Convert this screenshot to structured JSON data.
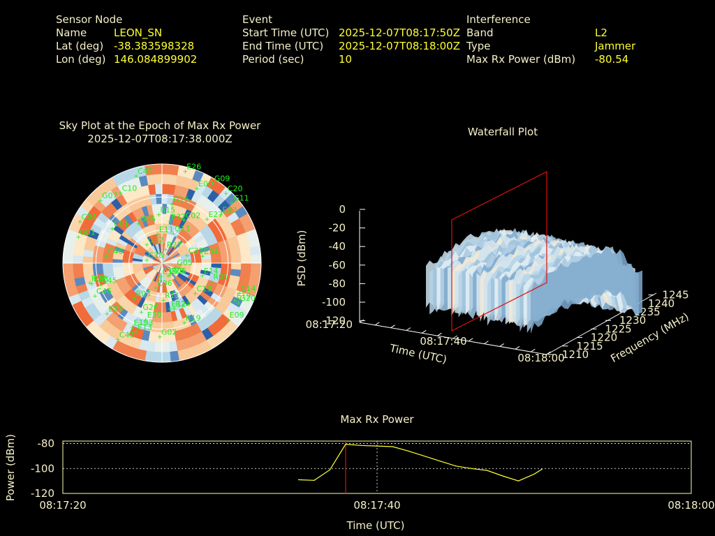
{
  "header": {
    "sensor": {
      "heading": "Sensor Node",
      "rows": [
        {
          "key": "Name",
          "value": "LEON_SN"
        },
        {
          "key": "Lat (deg)",
          "value": "-38.383598328"
        },
        {
          "key": "Lon (deg)",
          "value": "146.084899902"
        }
      ]
    },
    "event": {
      "heading": "Event",
      "rows": [
        {
          "key": "Start Time (UTC)",
          "value": "2025-12-07T08:17:50Z"
        },
        {
          "key": "End Time (UTC)",
          "value": "2025-12-07T08:18:00Z"
        },
        {
          "key": "Period (sec)",
          "value": "10"
        }
      ]
    },
    "interference": {
      "heading": "Interference",
      "rows": [
        {
          "key": "Band",
          "value": "L2"
        },
        {
          "key": "Type",
          "value": "Jammer"
        },
        {
          "key": "Max Rx Power (dBm)",
          "value": "-80.54"
        }
      ]
    }
  },
  "skyplot": {
    "title_line1": "Sky Plot at the Epoch of Max Rx Power",
    "title_line2": "2025-12-07T08:17:38.000Z",
    "satellites": [
      "C45",
      "R24",
      "R06",
      "G16",
      "C20",
      "C06",
      "C46",
      "E30",
      "E13",
      "R15",
      "C02",
      "C38",
      "G05",
      "E26",
      "G26",
      "C10",
      "C46",
      "E34",
      "C32",
      "R03",
      "G09",
      "E12",
      "G07",
      "G02",
      "E00",
      "G05",
      "G01",
      "E19",
      "G11",
      "C14",
      "E193",
      "E28",
      "E09",
      "E03",
      "E11",
      "E14",
      "C13",
      "C23",
      "R19",
      "C42",
      "R01",
      "G11",
      "E27",
      "C42",
      "R32",
      "G20",
      "R23",
      "R11",
      "C19",
      "G32",
      "C04",
      "E32",
      "C01",
      "R27"
    ],
    "label_color": "#22ee22"
  },
  "waterfall": {
    "title": "Waterfall Plot",
    "z_ticks": [
      "0",
      "-20",
      "-40",
      "-60",
      "-80",
      "-100",
      "-120"
    ],
    "z_label": "PSD (dBm)",
    "time_ticks": [
      "08:17:20",
      "08:17:40",
      "08:18:00"
    ],
    "time_label": "Time (UTC)",
    "freq_ticks": [
      "1210",
      "1215",
      "1220",
      "1225",
      "1230",
      "1235",
      "1240",
      "1245"
    ],
    "freq_label": "Frequency (MHz)"
  },
  "chart_data": {
    "type": "line",
    "title": "Max Rx Power",
    "xlabel": "Time (UTC)",
    "ylabel": "Power (dBm)",
    "x_tick_labels": [
      "08:17:20",
      "08:17:40",
      "08:18:00"
    ],
    "y_tick_labels": [
      "-80",
      "-100",
      "-120"
    ],
    "xlim_seconds": [
      0,
      40
    ],
    "ylim": [
      -120,
      -78
    ],
    "grid": "dotted",
    "marker_time_s": 18,
    "series": [
      {
        "color": "#ffff33",
        "points": [
          [
            15.0,
            -109.0
          ],
          [
            16.0,
            -109.5
          ],
          [
            17.0,
            -101.0
          ],
          [
            18.0,
            -80.5
          ],
          [
            19.0,
            -81.5
          ],
          [
            20.0,
            -82.0
          ],
          [
            21.0,
            -82.5
          ],
          [
            22.0,
            -86.0
          ],
          [
            23.0,
            -90.0
          ],
          [
            24.0,
            -94.0
          ],
          [
            25.0,
            -98.0
          ],
          [
            26.0,
            -100.0
          ],
          [
            27.0,
            -101.5
          ],
          [
            28.0,
            -106.0
          ],
          [
            29.0,
            -110.0
          ],
          [
            30.0,
            -104.5
          ],
          [
            30.5,
            -100.5
          ]
        ]
      }
    ]
  }
}
